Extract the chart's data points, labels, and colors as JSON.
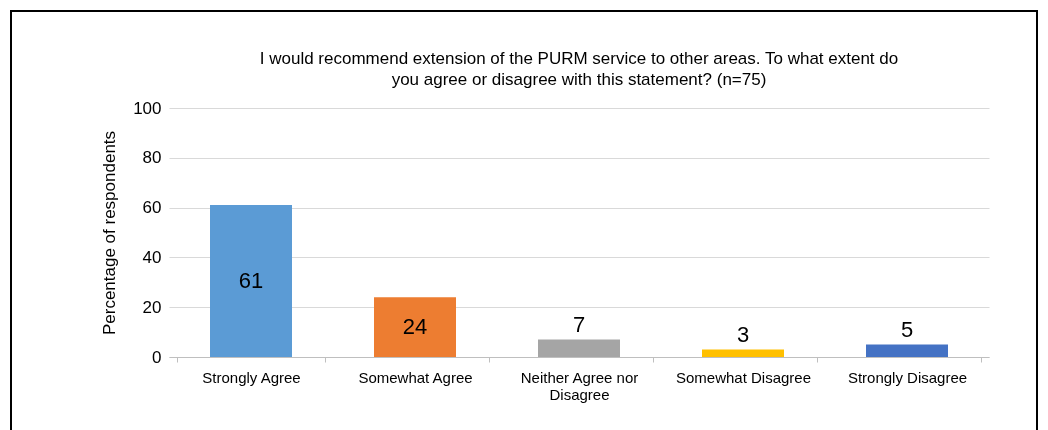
{
  "chart_data": {
    "type": "bar",
    "title": [
      "I would recommend extension of the PURM service to other areas. To what extent do",
      "you agree or disagree with this statement? (n=75)"
    ],
    "ylabel": "Percentage of respondents",
    "categories": [
      "Strongly Agree",
      "Somewhat Agree",
      "Neither Agree nor Disagree",
      "Somewhat Disagree",
      "Strongly Disagree"
    ],
    "values": [
      61,
      24,
      7,
      3,
      5
    ],
    "colors": [
      "#5b9bd5",
      "#ed7d31",
      "#a5a5a5",
      "#ffc000",
      "#4472c4"
    ],
    "ylim": [
      0,
      100
    ],
    "yticks": [
      0,
      20,
      40,
      60,
      80,
      100
    ],
    "grid": "y",
    "data_labels": true,
    "legend": false
  }
}
